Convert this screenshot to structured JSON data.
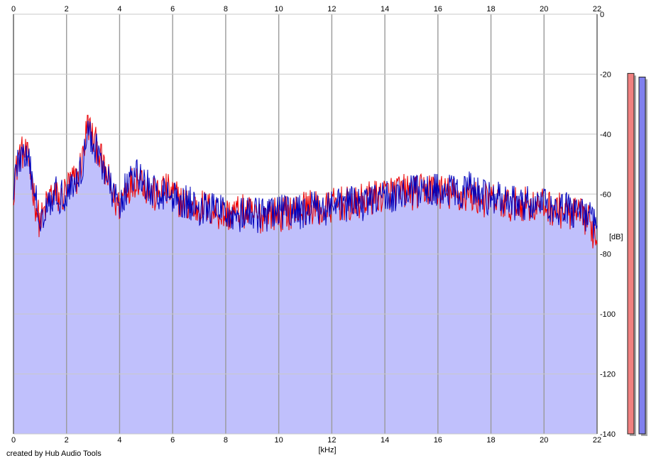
{
  "chart_data": {
    "type": "area",
    "xlabel": "[kHz]",
    "ylabel": "[dB]",
    "xlim": [
      0,
      22
    ],
    "ylim": [
      -140,
      0
    ],
    "x_ticks": [
      0,
      2,
      4,
      6,
      8,
      10,
      12,
      14,
      16,
      18,
      20,
      22
    ],
    "y_ticks": [
      0,
      -20,
      -40,
      -60,
      -80,
      -100,
      -120,
      -140
    ],
    "grid": true,
    "series": [
      {
        "color": "#ee0000",
        "x": [
          0,
          0.2,
          0.4,
          0.6,
          0.8,
          1.0,
          1.2,
          1.4,
          1.6,
          1.8,
          2.0,
          2.2,
          2.4,
          2.6,
          2.8,
          3.0,
          3.2,
          3.4,
          3.6,
          3.8,
          4.0,
          4.2,
          4.4,
          4.6,
          4.8,
          5.0,
          5.2,
          5.4,
          5.6,
          5.8,
          6.0,
          6.4,
          6.8,
          7.2,
          7.6,
          8.0,
          8.4,
          8.8,
          9.2,
          9.6,
          10.0,
          10.4,
          10.8,
          11.2,
          11.6,
          12.0,
          12.4,
          12.8,
          13.2,
          13.6,
          14.0,
          14.4,
          14.8,
          15.2,
          15.6,
          16.0,
          16.4,
          16.8,
          17.2,
          17.6,
          18.0,
          18.4,
          18.8,
          19.2,
          19.6,
          20.0,
          20.4,
          20.8,
          21.2,
          21.6,
          22.0
        ],
        "y": [
          -58,
          -47,
          -46,
          -50,
          -62,
          -70,
          -65,
          -60,
          -61,
          -62,
          -58,
          -56,
          -55,
          -48,
          -36,
          -42,
          -45,
          -52,
          -56,
          -62,
          -64,
          -58,
          -57,
          -55,
          -54,
          -58,
          -60,
          -61,
          -58,
          -59,
          -60,
          -63,
          -65,
          -64,
          -66,
          -67,
          -66,
          -66,
          -68,
          -66,
          -67,
          -66,
          -65,
          -64,
          -66,
          -64,
          -63,
          -64,
          -62,
          -61,
          -60,
          -59,
          -59,
          -60,
          -58,
          -59,
          -60,
          -61,
          -60,
          -62,
          -62,
          -63,
          -64,
          -63,
          -64,
          -64,
          -65,
          -66,
          -67,
          -68,
          -75
        ]
      },
      {
        "color": "#0000bb",
        "x": [
          0,
          0.2,
          0.4,
          0.6,
          0.8,
          1.0,
          1.2,
          1.4,
          1.6,
          1.8,
          2.0,
          2.2,
          2.4,
          2.6,
          2.8,
          3.0,
          3.2,
          3.4,
          3.6,
          3.8,
          4.0,
          4.2,
          4.4,
          4.6,
          4.8,
          5.0,
          5.2,
          5.4,
          5.6,
          5.8,
          6.0,
          6.4,
          6.8,
          7.2,
          7.6,
          8.0,
          8.4,
          8.8,
          9.2,
          9.6,
          10.0,
          10.4,
          10.8,
          11.2,
          11.6,
          12.0,
          12.4,
          12.8,
          13.2,
          13.6,
          14.0,
          14.4,
          14.8,
          15.2,
          15.6,
          16.0,
          16.4,
          16.8,
          17.2,
          17.6,
          18.0,
          18.4,
          18.8,
          19.2,
          19.6,
          20.0,
          20.4,
          20.8,
          21.2,
          21.6,
          22.0
        ],
        "y": [
          -57,
          -48,
          -47,
          -51,
          -60,
          -68,
          -64,
          -61,
          -60,
          -61,
          -59,
          -57,
          -56,
          -50,
          -39,
          -43,
          -46,
          -51,
          -57,
          -61,
          -63,
          -59,
          -56,
          -54,
          -55,
          -57,
          -59,
          -60,
          -59,
          -60,
          -61,
          -62,
          -64,
          -65,
          -65,
          -66,
          -67,
          -67,
          -67,
          -67,
          -66,
          -66,
          -66,
          -65,
          -65,
          -64,
          -64,
          -63,
          -63,
          -62,
          -61,
          -60,
          -60,
          -59,
          -59,
          -58,
          -59,
          -60,
          -58,
          -61,
          -61,
          -62,
          -63,
          -63,
          -63,
          -64,
          -64,
          -65,
          -66,
          -67,
          -72
        ]
      }
    ],
    "meters": [
      {
        "color": "#f08080",
        "level": 0.98
      },
      {
        "color": "#8080ee",
        "level": 0.97
      }
    ],
    "fill_color": "#c0c0fc"
  },
  "credit": "created by Hub Audio Tools",
  "x_unit": "[kHz]",
  "y_unit": "[dB]"
}
